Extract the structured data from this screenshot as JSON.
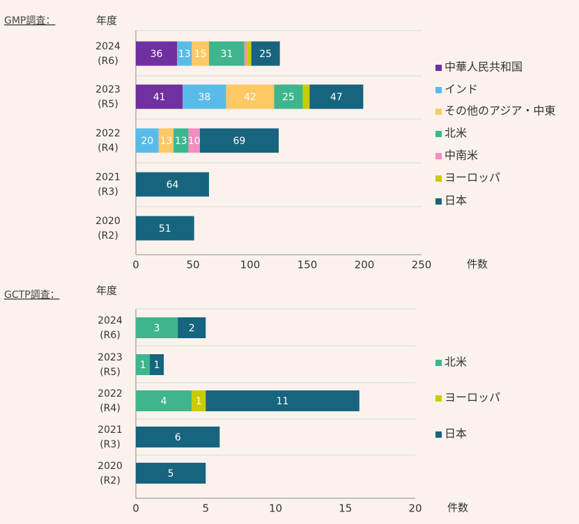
{
  "colors": {
    "china": "#7030a0",
    "india": "#5bbbe8",
    "other_asia": "#ffc864",
    "north_america": "#3fb58e",
    "central_south_america": "#f48cc0",
    "europe": "#c9cc00",
    "japan": "#17647e",
    "axis": "#555555",
    "grid": "#d8d8d8",
    "background": "#fcf2ed"
  },
  "chart_data": [
    {
      "type": "bar",
      "orientation": "horizontal",
      "stacked": true,
      "section_label": "GMP調査：",
      "ylabel": "年度",
      "xlabel": "件数",
      "xlim": [
        0,
        250
      ],
      "xticks": [
        "0",
        "50",
        "100",
        "150",
        "200",
        "250"
      ],
      "categories": [
        {
          "year": "2024",
          "era": "(R6)"
        },
        {
          "year": "2023",
          "era": "(R5)"
        },
        {
          "year": "2022",
          "era": "(R4)"
        },
        {
          "year": "2021",
          "era": "(R3)"
        },
        {
          "year": "2020",
          "era": "(R2)"
        }
      ],
      "series": [
        {
          "name": "中華人民共和国",
          "color_key": "china",
          "values": [
            36,
            41,
            0,
            0,
            0
          ]
        },
        {
          "name": "インド",
          "color_key": "india",
          "values": [
            13,
            38,
            20,
            0,
            0
          ]
        },
        {
          "name": "その他のアジア・中東",
          "color_key": "other_asia",
          "values": [
            15,
            42,
            13,
            0,
            0
          ]
        },
        {
          "name": "北米",
          "color_key": "north_america",
          "values": [
            31,
            25,
            13,
            0,
            0
          ]
        },
        {
          "name": "中南米",
          "color_key": "central_south_america",
          "values": [
            2,
            0,
            10,
            0,
            0
          ]
        },
        {
          "name": "ヨーロッパ",
          "color_key": "europe",
          "values": [
            4,
            6,
            0,
            0,
            0
          ]
        },
        {
          "name": "日本",
          "color_key": "japan",
          "values": [
            25,
            47,
            69,
            64,
            51
          ]
        }
      ],
      "labels": [
        [
          "36",
          "13",
          "15",
          "31",
          "",
          "",
          "25"
        ],
        [
          "41",
          "38",
          "42",
          "25",
          "",
          "",
          "47"
        ],
        [
          "",
          "20",
          "13",
          "13",
          "10",
          "",
          "69"
        ],
        [
          "",
          "",
          "",
          "",
          "",
          "",
          "64"
        ],
        [
          "",
          "",
          "",
          "",
          "",
          "",
          "51"
        ]
      ],
      "legend_position": "right"
    },
    {
      "type": "bar",
      "orientation": "horizontal",
      "stacked": true,
      "section_label": "GCTP調査：",
      "ylabel": "年度",
      "xlabel": "件数",
      "xlim": [
        0,
        20
      ],
      "xticks": [
        "0",
        "5",
        "10",
        "15",
        "20"
      ],
      "categories": [
        {
          "year": "2024",
          "era": "(R6)"
        },
        {
          "year": "2023",
          "era": "(R5)"
        },
        {
          "year": "2022",
          "era": "(R4)"
        },
        {
          "year": "2021",
          "era": "(R3)"
        },
        {
          "year": "2020",
          "era": "(R2)"
        }
      ],
      "series": [
        {
          "name": "北米",
          "color_key": "north_america",
          "values": [
            3,
            1,
            4,
            0,
            0
          ]
        },
        {
          "name": "ヨーロッパ",
          "color_key": "europe",
          "values": [
            0,
            0,
            1,
            0,
            0
          ]
        },
        {
          "name": "日本",
          "color_key": "japan",
          "values": [
            2,
            1,
            11,
            6,
            5
          ]
        }
      ],
      "labels": [
        [
          "3",
          "",
          "2"
        ],
        [
          "1",
          "",
          "1"
        ],
        [
          "4",
          "1",
          "11"
        ],
        [
          "",
          "",
          "6"
        ],
        [
          "",
          "",
          "5"
        ]
      ],
      "legend_position": "right"
    }
  ]
}
